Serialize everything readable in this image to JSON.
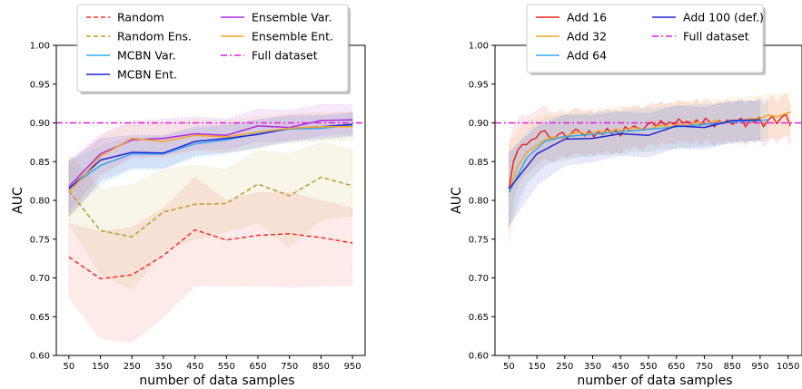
{
  "chart_data": [
    {
      "type": "line",
      "xlabel": "number of data samples",
      "ylabel": "AUC",
      "xticks": [
        50,
        150,
        250,
        350,
        450,
        550,
        650,
        750,
        850,
        950
      ],
      "yticks": [
        "0.60",
        "0.65",
        "0.70",
        "0.75",
        "0.80",
        "0.85",
        "0.90",
        "0.95",
        "1.00"
      ],
      "xlim": [
        10,
        990
      ],
      "ylim": [
        0.6,
        1.0
      ],
      "grid": false,
      "legend": "top, 2 columns",
      "reference_line": {
        "name": "Full dataset",
        "value": 0.9,
        "color": "#e619e6",
        "style": "dashdot"
      },
      "series": [
        {
          "name": "Random",
          "color": "#f0302a",
          "style": "dashed",
          "x": [
            50,
            150,
            250,
            350,
            450,
            550,
            650,
            750,
            850,
            950
          ],
          "values": [
            0.727,
            0.699,
            0.704,
            0.729,
            0.762,
            0.749,
            0.755,
            0.757,
            0.752,
            0.745
          ],
          "band_low": [
            0.675,
            0.622,
            0.617,
            0.65,
            0.69,
            0.69,
            0.69,
            0.688,
            0.69,
            0.69
          ],
          "band_high": [
            0.77,
            0.76,
            0.765,
            0.79,
            0.83,
            0.8,
            0.81,
            0.81,
            0.8,
            0.79
          ]
        },
        {
          "name": "Random Ens.",
          "color": "#bf9b2a",
          "style": "dashed",
          "x": [
            50,
            150,
            250,
            350,
            450,
            550,
            650,
            750,
            850,
            950
          ],
          "values": [
            0.812,
            0.761,
            0.753,
            0.785,
            0.795,
            0.796,
            0.821,
            0.806,
            0.83,
            0.819
          ],
          "band_low": [
            0.77,
            0.705,
            0.685,
            0.735,
            0.75,
            0.76,
            0.77,
            0.74,
            0.775,
            0.78
          ],
          "band_high": [
            0.86,
            0.815,
            0.82,
            0.84,
            0.845,
            0.84,
            0.865,
            0.86,
            0.875,
            0.865
          ]
        },
        {
          "name": "MCBN Var.",
          "color": "#33aaee",
          "style": "solid",
          "x": [
            50,
            150,
            250,
            350,
            450,
            550,
            650,
            750,
            850,
            950
          ],
          "values": [
            0.816,
            0.845,
            0.86,
            0.86,
            0.873,
            0.878,
            0.886,
            0.892,
            0.893,
            0.897
          ],
          "band_low": [
            0.78,
            0.82,
            0.84,
            0.84,
            0.855,
            0.86,
            0.868,
            0.875,
            0.878,
            0.882
          ],
          "band_high": [
            0.85,
            0.87,
            0.882,
            0.882,
            0.892,
            0.896,
            0.904,
            0.908,
            0.908,
            0.912
          ]
        },
        {
          "name": "MCBN Ent.",
          "color": "#1f26d6",
          "style": "solid",
          "x": [
            50,
            150,
            250,
            350,
            450,
            550,
            650,
            750,
            850,
            950
          ],
          "values": [
            0.815,
            0.852,
            0.862,
            0.861,
            0.876,
            0.88,
            0.885,
            0.893,
            0.895,
            0.898
          ],
          "band_low": [
            0.78,
            0.825,
            0.842,
            0.842,
            0.858,
            0.862,
            0.868,
            0.878,
            0.88,
            0.884
          ],
          "band_high": [
            0.85,
            0.88,
            0.884,
            0.884,
            0.895,
            0.898,
            0.904,
            0.91,
            0.91,
            0.914
          ]
        },
        {
          "name": "Ensemble Var.",
          "color": "#b02be0",
          "style": "solid",
          "x": [
            50,
            150,
            250,
            350,
            450,
            550,
            650,
            750,
            850,
            950
          ],
          "values": [
            0.818,
            0.86,
            0.878,
            0.88,
            0.886,
            0.884,
            0.896,
            0.894,
            0.903,
            0.904
          ],
          "band_low": [
            0.785,
            0.835,
            0.855,
            0.858,
            0.866,
            0.866,
            0.876,
            0.876,
            0.884,
            0.886
          ],
          "band_high": [
            0.852,
            0.885,
            0.902,
            0.905,
            0.908,
            0.905,
            0.918,
            0.916,
            0.924,
            0.924
          ]
        },
        {
          "name": "Ensemble Ent.",
          "color": "#f5a623",
          "style": "solid",
          "x": [
            50,
            150,
            250,
            350,
            450,
            550,
            650,
            750,
            850,
            950
          ],
          "values": [
            0.81,
            0.857,
            0.88,
            0.876,
            0.884,
            0.882,
            0.888,
            0.893,
            0.895,
            0.895
          ],
          "band_low": [
            0.775,
            0.83,
            0.858,
            0.855,
            0.864,
            0.862,
            0.87,
            0.874,
            0.876,
            0.878
          ],
          "band_high": [
            0.845,
            0.882,
            0.902,
            0.9,
            0.905,
            0.903,
            0.908,
            0.912,
            0.914,
            0.914
          ]
        }
      ]
    },
    {
      "type": "line",
      "xlabel": "number of data samples",
      "ylabel": "AUC",
      "xticks": [
        50,
        150,
        250,
        350,
        450,
        550,
        650,
        750,
        850,
        950,
        1050
      ],
      "yticks": [
        "0.60",
        "0.65",
        "0.70",
        "0.75",
        "0.80",
        "0.85",
        "0.90",
        "0.95",
        "1.00"
      ],
      "xlim": [
        0,
        1100
      ],
      "ylim": [
        0.6,
        1.0
      ],
      "grid": false,
      "legend": "top, 2 columns",
      "reference_line": {
        "name": "Full dataset",
        "value": 0.9,
        "color": "#e619e6",
        "style": "dashdot"
      },
      "series": [
        {
          "name": "Add 16",
          "color": "#e8261f",
          "style": "solid",
          "x": [
            50,
            66,
            82,
            98,
            114,
            130,
            146,
            162,
            178,
            194,
            210,
            226,
            242,
            258,
            274,
            290,
            306,
            322,
            338,
            354,
            370,
            386,
            402,
            418,
            434,
            450,
            466,
            482,
            498,
            514,
            530,
            546,
            562,
            578,
            594,
            610,
            626,
            642,
            658,
            674,
            690,
            706,
            722,
            738,
            754,
            770,
            786,
            802,
            818,
            834,
            850,
            866,
            882,
            898,
            914,
            930,
            946,
            962,
            978,
            994,
            1010,
            1026,
            1042,
            1058
          ],
          "values": [
            0.815,
            0.85,
            0.865,
            0.872,
            0.872,
            0.878,
            0.88,
            0.888,
            0.89,
            0.882,
            0.878,
            0.885,
            0.888,
            0.88,
            0.887,
            0.892,
            0.888,
            0.883,
            0.89,
            0.882,
            0.888,
            0.885,
            0.893,
            0.886,
            0.89,
            0.883,
            0.895,
            0.891,
            0.896,
            0.893,
            0.891,
            0.898,
            0.901,
            0.895,
            0.903,
            0.897,
            0.901,
            0.898,
            0.905,
            0.9,
            0.902,
            0.898,
            0.904,
            0.897,
            0.906,
            0.901,
            0.895,
            0.903,
            0.899,
            0.904,
            0.898,
            0.902,
            0.906,
            0.895,
            0.904,
            0.9,
            0.907,
            0.895,
            0.903,
            0.909,
            0.899,
            0.907,
            0.911,
            0.896
          ],
          "band_low": [
            0.76,
            0.8,
            0.82,
            0.83,
            0.835,
            0.84,
            0.845,
            0.852,
            0.855,
            0.852,
            0.85,
            0.855,
            0.858,
            0.855,
            0.86,
            0.862,
            0.86,
            0.858,
            0.862,
            0.858,
            0.862,
            0.86,
            0.865,
            0.86,
            0.864,
            0.86,
            0.868,
            0.866,
            0.87,
            0.868,
            0.866,
            0.872,
            0.874,
            0.87,
            0.876,
            0.872,
            0.875,
            0.873,
            0.878,
            0.875,
            0.876,
            0.873,
            0.878,
            0.872,
            0.88,
            0.876,
            0.87,
            0.878,
            0.874,
            0.878,
            0.873,
            0.876,
            0.88,
            0.87,
            0.878,
            0.875,
            0.88,
            0.87,
            0.876,
            0.882,
            0.873,
            0.88,
            0.884,
            0.87
          ],
          "band_high": [
            0.87,
            0.895,
            0.905,
            0.91,
            0.908,
            0.912,
            0.914,
            0.92,
            0.922,
            0.915,
            0.91,
            0.915,
            0.918,
            0.91,
            0.916,
            0.92,
            0.916,
            0.912,
            0.918,
            0.91,
            0.916,
            0.914,
            0.92,
            0.914,
            0.918,
            0.912,
            0.922,
            0.918,
            0.922,
            0.92,
            0.918,
            0.924,
            0.926,
            0.922,
            0.928,
            0.923,
            0.926,
            0.924,
            0.93,
            0.926,
            0.928,
            0.924,
            0.93,
            0.923,
            0.932,
            0.927,
            0.922,
            0.929,
            0.925,
            0.93,
            0.924,
            0.928,
            0.932,
            0.922,
            0.93,
            0.926,
            0.933,
            0.922,
            0.929,
            0.935,
            0.925,
            0.933,
            0.937,
            0.922
          ]
        },
        {
          "name": "Add 32",
          "color": "#f5a623",
          "style": "solid",
          "x": [
            50,
            82,
            114,
            146,
            178,
            210,
            242,
            274,
            306,
            338,
            370,
            402,
            434,
            466,
            498,
            530,
            562,
            594,
            626,
            658,
            690,
            722,
            754,
            786,
            818,
            850,
            882,
            914,
            946,
            978,
            1010,
            1042,
            1058
          ],
          "values": [
            0.812,
            0.845,
            0.862,
            0.87,
            0.878,
            0.882,
            0.88,
            0.886,
            0.888,
            0.885,
            0.89,
            0.887,
            0.892,
            0.889,
            0.894,
            0.891,
            0.893,
            0.897,
            0.895,
            0.899,
            0.897,
            0.901,
            0.898,
            0.903,
            0.9,
            0.904,
            0.902,
            0.906,
            0.905,
            0.91,
            0.908,
            0.912,
            0.914
          ],
          "band_low": [
            0.745,
            0.8,
            0.825,
            0.835,
            0.845,
            0.85,
            0.85,
            0.855,
            0.858,
            0.856,
            0.86,
            0.858,
            0.862,
            0.86,
            0.865,
            0.862,
            0.864,
            0.868,
            0.866,
            0.87,
            0.868,
            0.872,
            0.87,
            0.874,
            0.872,
            0.876,
            0.874,
            0.878,
            0.877,
            0.882,
            0.88,
            0.884,
            0.886
          ],
          "band_high": [
            0.875,
            0.89,
            0.9,
            0.905,
            0.91,
            0.913,
            0.911,
            0.916,
            0.918,
            0.915,
            0.92,
            0.917,
            0.922,
            0.919,
            0.923,
            0.92,
            0.922,
            0.926,
            0.924,
            0.928,
            0.926,
            0.93,
            0.927,
            0.932,
            0.929,
            0.933,
            0.931,
            0.935,
            0.934,
            0.938,
            0.936,
            0.94,
            0.942
          ]
        },
        {
          "name": "Add 64",
          "color": "#33aaee",
          "style": "solid",
          "x": [
            50,
            114,
            178,
            242,
            306,
            370,
            434,
            498,
            562,
            626,
            690,
            754,
            818,
            882,
            946,
            978
          ],
          "values": [
            0.81,
            0.855,
            0.876,
            0.882,
            0.884,
            0.886,
            0.888,
            0.89,
            0.892,
            0.894,
            0.896,
            0.898,
            0.9,
            0.902,
            0.903,
            0.904
          ],
          "band_low": [
            0.765,
            0.822,
            0.846,
            0.854,
            0.856,
            0.858,
            0.86,
            0.862,
            0.864,
            0.866,
            0.868,
            0.87,
            0.872,
            0.874,
            0.876,
            0.877
          ],
          "band_high": [
            0.86,
            0.888,
            0.905,
            0.91,
            0.912,
            0.914,
            0.915,
            0.917,
            0.919,
            0.921,
            0.923,
            0.924,
            0.926,
            0.928,
            0.929,
            0.93
          ]
        },
        {
          "name": "Add 100 (def.)",
          "color": "#1f26d6",
          "style": "solid",
          "x": [
            50,
            150,
            250,
            350,
            450,
            550,
            650,
            750,
            850,
            950
          ],
          "values": [
            0.815,
            0.86,
            0.879,
            0.88,
            0.886,
            0.884,
            0.896,
            0.894,
            0.903,
            0.904
          ],
          "band_low": [
            0.768,
            0.82,
            0.845,
            0.85,
            0.858,
            0.856,
            0.868,
            0.866,
            0.876,
            0.878
          ],
          "band_high": [
            0.862,
            0.895,
            0.91,
            0.91,
            0.914,
            0.912,
            0.922,
            0.92,
            0.928,
            0.928
          ]
        }
      ]
    }
  ]
}
